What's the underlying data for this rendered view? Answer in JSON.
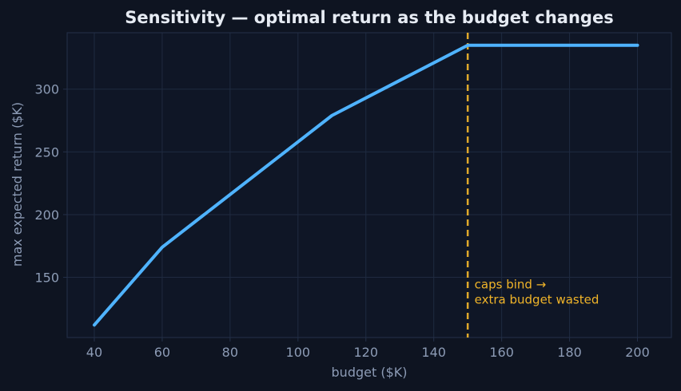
{
  "chart_data": {
    "type": "line",
    "title": "Sensitivity — optimal return as the budget changes",
    "xlabel": "budget ($K)",
    "ylabel": "max expected return ($K)",
    "xlim": [
      32,
      210
    ],
    "ylim": [
      102,
      345
    ],
    "xticks": [
      40,
      60,
      80,
      100,
      120,
      140,
      160,
      180,
      200
    ],
    "yticks": [
      150,
      200,
      250,
      300
    ],
    "grid": true,
    "series": [
      {
        "x": [
          40,
          60,
          110,
          150,
          200
        ],
        "y": [
          112,
          174,
          279,
          335,
          335
        ]
      }
    ],
    "reference_line": {
      "x": 150
    },
    "annotation": {
      "x": 152,
      "y": 141,
      "lines": [
        "caps bind →",
        "extra budget wasted"
      ]
    },
    "colors": {
      "background": "#0e1421",
      "plot_background": "#0f1626",
      "grid": "#1f2a40",
      "spine": "#243049",
      "line": "#4fb3ff",
      "reference": "#e0a92b",
      "annotation": "#f0b429",
      "title": "#e6ebf3",
      "text": "#8c9bb5"
    }
  }
}
